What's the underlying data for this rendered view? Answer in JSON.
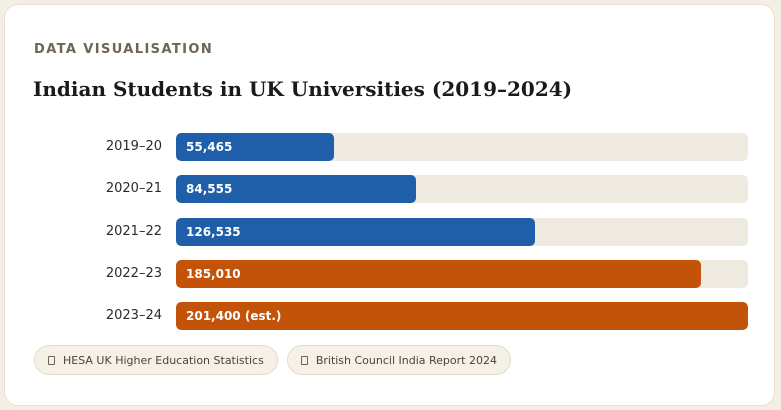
{
  "eyebrow": "DATA VISUALISATION",
  "colors": {
    "blue": "#1f5ea8",
    "orange": "#c4530a",
    "track": "#efeae0"
  },
  "chart_data": {
    "type": "bar",
    "orientation": "horizontal",
    "title": "Indian Students in UK Universities (2019–2024)",
    "categories": [
      "2019–20",
      "2020–21",
      "2021–22",
      "2022–23",
      "2023–24"
    ],
    "values": [
      55465,
      84555,
      126535,
      185010,
      201400
    ],
    "value_labels": [
      "55,465",
      "84,555",
      "126,535",
      "185,010",
      "201,400 (est.)"
    ],
    "bar_colors": [
      "#1f5ea8",
      "#1f5ea8",
      "#1f5ea8",
      "#c4530a",
      "#c4530a"
    ],
    "xlim": [
      0,
      201400
    ],
    "grid": false
  },
  "sources": [
    {
      "icon": "document-icon",
      "label": "HESA UK Higher Education Statistics"
    },
    {
      "icon": "document-icon",
      "label": "British Council India Report 2024"
    }
  ]
}
